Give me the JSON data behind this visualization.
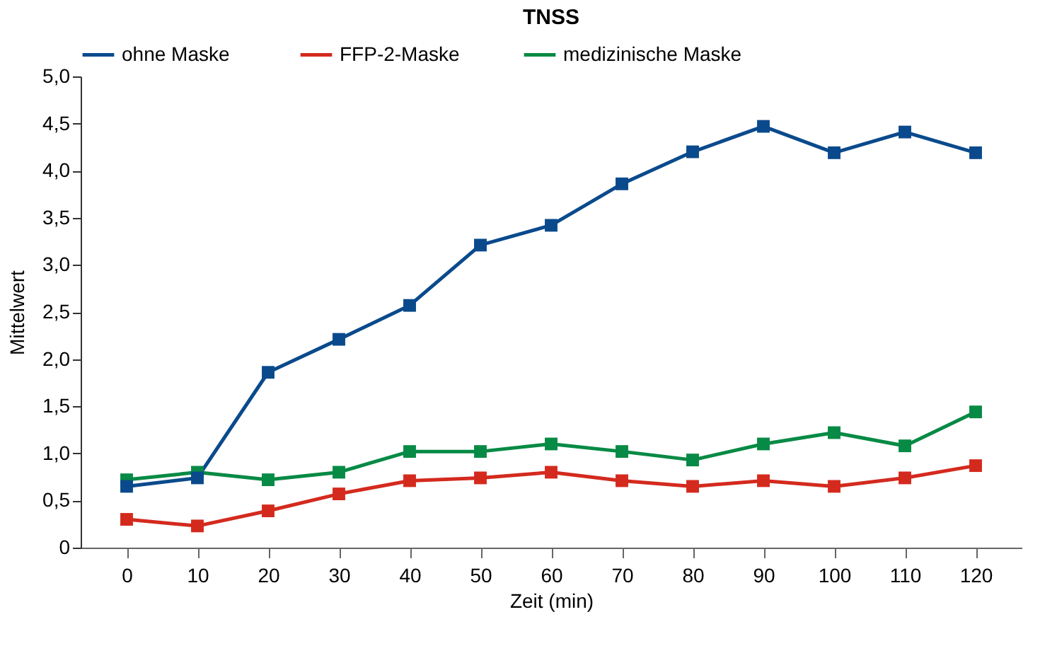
{
  "chart_data": {
    "type": "line",
    "title": "TNSS",
    "xlabel": "Zeit (min)",
    "ylabel": "Mittelwert",
    "categories": [
      "0",
      "10",
      "20",
      "30",
      "40",
      "50",
      "60",
      "70",
      "80",
      "90",
      "100",
      "110",
      "120"
    ],
    "series": [
      {
        "name": "ohne  Maske",
        "color": "#0a4a8c",
        "values": [
          0.65,
          0.74,
          1.86,
          2.21,
          2.57,
          3.21,
          3.42,
          3.86,
          4.2,
          4.47,
          4.19,
          4.41,
          4.19
        ]
      },
      {
        "name": "FFP-2-Maske",
        "color": "#d42a1e",
        "values": [
          0.3,
          0.23,
          0.39,
          0.57,
          0.71,
          0.74,
          0.8,
          0.71,
          0.65,
          0.71,
          0.65,
          0.74,
          0.87
        ]
      },
      {
        "name": "medizinische Maske",
        "color": "#078a45",
        "values": [
          0.72,
          0.8,
          0.72,
          0.8,
          1.02,
          1.02,
          1.1,
          1.02,
          0.93,
          1.1,
          1.22,
          1.08,
          1.44
        ]
      }
    ],
    "ylim": [
      0,
      5
    ],
    "yticks": [
      0,
      {
        "value": 0.5,
        "label": "0,5"
      },
      {
        "value": 1,
        "label": "1,0"
      },
      {
        "value": 1.5,
        "label": "1,5"
      },
      {
        "value": 2,
        "label": "2,0"
      },
      {
        "value": 2.5,
        "label": "2,5"
      },
      {
        "value": 3,
        "label": "3,0"
      },
      {
        "value": 3.5,
        "label": "3,5"
      },
      {
        "value": 4,
        "label": "4,0"
      },
      {
        "value": 4.5,
        "label": "4,5"
      },
      {
        "value": 5,
        "label": "5,0"
      }
    ],
    "grid": false,
    "legend": "top left",
    "marker": "square",
    "line_style": "solid"
  }
}
